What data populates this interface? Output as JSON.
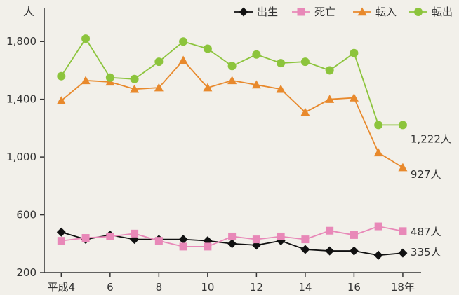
{
  "chart_data": {
    "type": "line",
    "title": "",
    "xlabel": "",
    "ylabel": "人",
    "ylim": [
      200,
      2000
    ],
    "yticks": [
      200,
      600,
      1000,
      1400,
      1800
    ],
    "ytick_labels": [
      "200",
      "600",
      "1,000",
      "1,400",
      "1,800"
    ],
    "x": [
      4,
      5,
      6,
      7,
      8,
      9,
      10,
      11,
      12,
      13,
      14,
      15,
      16,
      17,
      18
    ],
    "xticks": [
      4,
      6,
      8,
      10,
      12,
      14,
      16,
      18
    ],
    "xtick_labels": [
      "平成4",
      "6",
      "8",
      "10",
      "12",
      "14",
      "16",
      "18年"
    ],
    "grid": false,
    "legend_position": "top-right",
    "series": [
      {
        "name": "出生",
        "color": "#111111",
        "marker": "diamond",
        "values": [
          480,
          430,
          460,
          430,
          430,
          430,
          420,
          400,
          390,
          420,
          360,
          350,
          350,
          320,
          335
        ],
        "end_label": "335人"
      },
      {
        "name": "死亡",
        "color": "#e888b8",
        "marker": "square",
        "values": [
          420,
          440,
          450,
          470,
          420,
          380,
          380,
          450,
          430,
          450,
          430,
          490,
          460,
          520,
          487
        ],
        "end_label": "487人"
      },
      {
        "name": "転入",
        "color": "#e8892c",
        "marker": "triangle",
        "values": [
          1390,
          1530,
          1520,
          1470,
          1480,
          1670,
          1480,
          1530,
          1500,
          1470,
          1310,
          1400,
          1410,
          1030,
          927
        ],
        "end_label": "927人"
      },
      {
        "name": "転出",
        "color": "#8cc43c",
        "marker": "circle",
        "values": [
          1560,
          1820,
          1550,
          1540,
          1660,
          1800,
          1750,
          1630,
          1710,
          1650,
          1660,
          1600,
          1720,
          1222,
          1222
        ],
        "end_label": "1,222人"
      }
    ]
  }
}
